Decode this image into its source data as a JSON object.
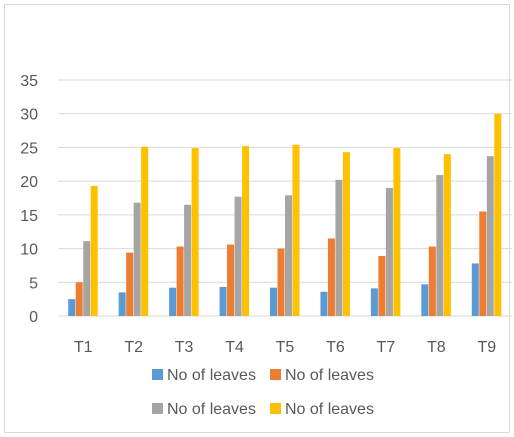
{
  "chart_data": {
    "type": "bar",
    "title": "",
    "xlabel": "",
    "ylabel": "",
    "categories": [
      "T1",
      "T2",
      "T3",
      "T4",
      "T5",
      "T6",
      "T7",
      "T8",
      "T9"
    ],
    "ylim": [
      0,
      35
    ],
    "yticks": [
      0,
      5,
      10,
      15,
      20,
      25,
      30,
      35
    ],
    "grid": true,
    "legend_position": "bottom",
    "series": [
      {
        "name": "No of leaves",
        "color": "#5b9bd5",
        "values": [
          2.5,
          3.5,
          4.2,
          4.3,
          4.2,
          3.6,
          4.1,
          4.7,
          7.8
        ]
      },
      {
        "name": "No of leaves",
        "color": "#ed7d31",
        "values": [
          5.0,
          9.4,
          10.3,
          10.6,
          10.0,
          11.5,
          8.9,
          10.3,
          15.5
        ]
      },
      {
        "name": "No of leaves",
        "color": "#a5a5a5",
        "values": [
          11.1,
          16.8,
          16.5,
          17.7,
          17.9,
          20.2,
          19.0,
          20.9,
          23.7
        ]
      },
      {
        "name": "No of leaves",
        "color": "#ffc000",
        "values": [
          19.3,
          25.1,
          24.9,
          25.2,
          25.4,
          24.3,
          24.9,
          24.0,
          30.0
        ]
      }
    ]
  }
}
